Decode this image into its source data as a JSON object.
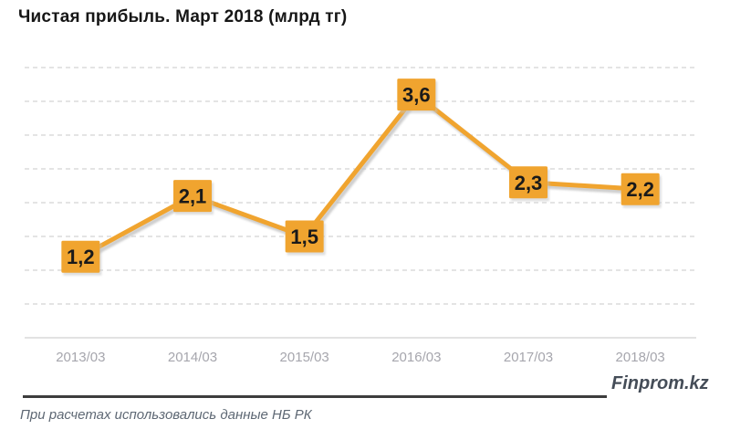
{
  "title": "Чистая прибыль. Март 2018 (млрд тг)",
  "footer": {
    "brand": "Finprom.kz",
    "source_note": "При расчетах использовались данные НБ РК"
  },
  "colors": {
    "accent_orange": "#F0A42F",
    "label_text": "#1a1a1a",
    "shadow_gray": "#c2c2c2",
    "gridline": "#d4d4d4",
    "axis_line": "#d8d8d8",
    "axis_label": "#a6a6ad",
    "divider": "#3d3d3d",
    "brand_text": "#454d58",
    "note_text": "#5e6874"
  },
  "chart_data": {
    "type": "line",
    "title": "Чистая прибыль. Март 2018 (млрд тг)",
    "categories": [
      "2013/03",
      "2014/03",
      "2015/03",
      "2016/03",
      "2017/03",
      "2018/03"
    ],
    "values": [
      1.2,
      2.1,
      1.5,
      3.6,
      2.3,
      2.2
    ],
    "value_labels": [
      "1,2",
      "2,1",
      "1,5",
      "3,6",
      "2,3",
      "2,2"
    ],
    "xlabel": "",
    "ylabel": "",
    "ylim": [
      0,
      4
    ],
    "gridline_step": 0.5,
    "grid": "dashed horizontal, no y tick labels",
    "legend": "none",
    "marker_style": "orange square value boxes centered on points",
    "line_color": "#F0A42F"
  }
}
